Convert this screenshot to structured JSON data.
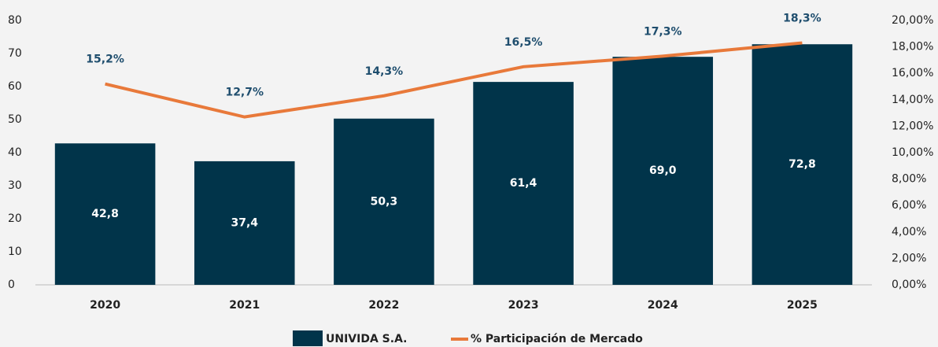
{
  "chart_data": {
    "type": "bar_line",
    "categories": [
      "2020",
      "2021",
      "2022",
      "2023",
      "2024",
      "2025"
    ],
    "series": [
      {
        "name": "UNIVIDA S.A.",
        "type": "bar",
        "color": "#01344a",
        "values": [
          42.8,
          37.4,
          50.3,
          61.4,
          69.0,
          72.8
        ],
        "value_labels": [
          "42,8",
          "37,4",
          "50,3",
          "61,4",
          "69,0",
          "72,8"
        ]
      },
      {
        "name": "% Participación de Mercado",
        "type": "line",
        "axis": "y2",
        "color": "#e8793a",
        "values": [
          15.2,
          12.7,
          14.3,
          16.5,
          17.3,
          18.3
        ],
        "value_labels": [
          "15,2%",
          "12,7%",
          "14,3%",
          "16,5%",
          "17,3%",
          "18,3%"
        ]
      }
    ],
    "ylim": [
      0,
      80
    ],
    "yticks": [
      0,
      10,
      20,
      30,
      40,
      50,
      60,
      70,
      80
    ],
    "y2lim": [
      0,
      20
    ],
    "y2ticks": [
      {
        "value": 0,
        "label": "0,00%"
      },
      {
        "value": 2,
        "label": "2,00%"
      },
      {
        "value": 4,
        "label": "4,00%"
      },
      {
        "value": 6,
        "label": "6,00%"
      },
      {
        "value": 8,
        "label": "8,00%"
      },
      {
        "value": 10,
        "label": "10,00%"
      },
      {
        "value": 12,
        "label": "12,00%"
      },
      {
        "value": 14,
        "label": "14,00%"
      },
      {
        "value": 16,
        "label": "16,00%"
      },
      {
        "value": 18,
        "label": "18,00%"
      },
      {
        "value": 20,
        "label": "20,00%"
      }
    ],
    "legend": "bottom"
  }
}
